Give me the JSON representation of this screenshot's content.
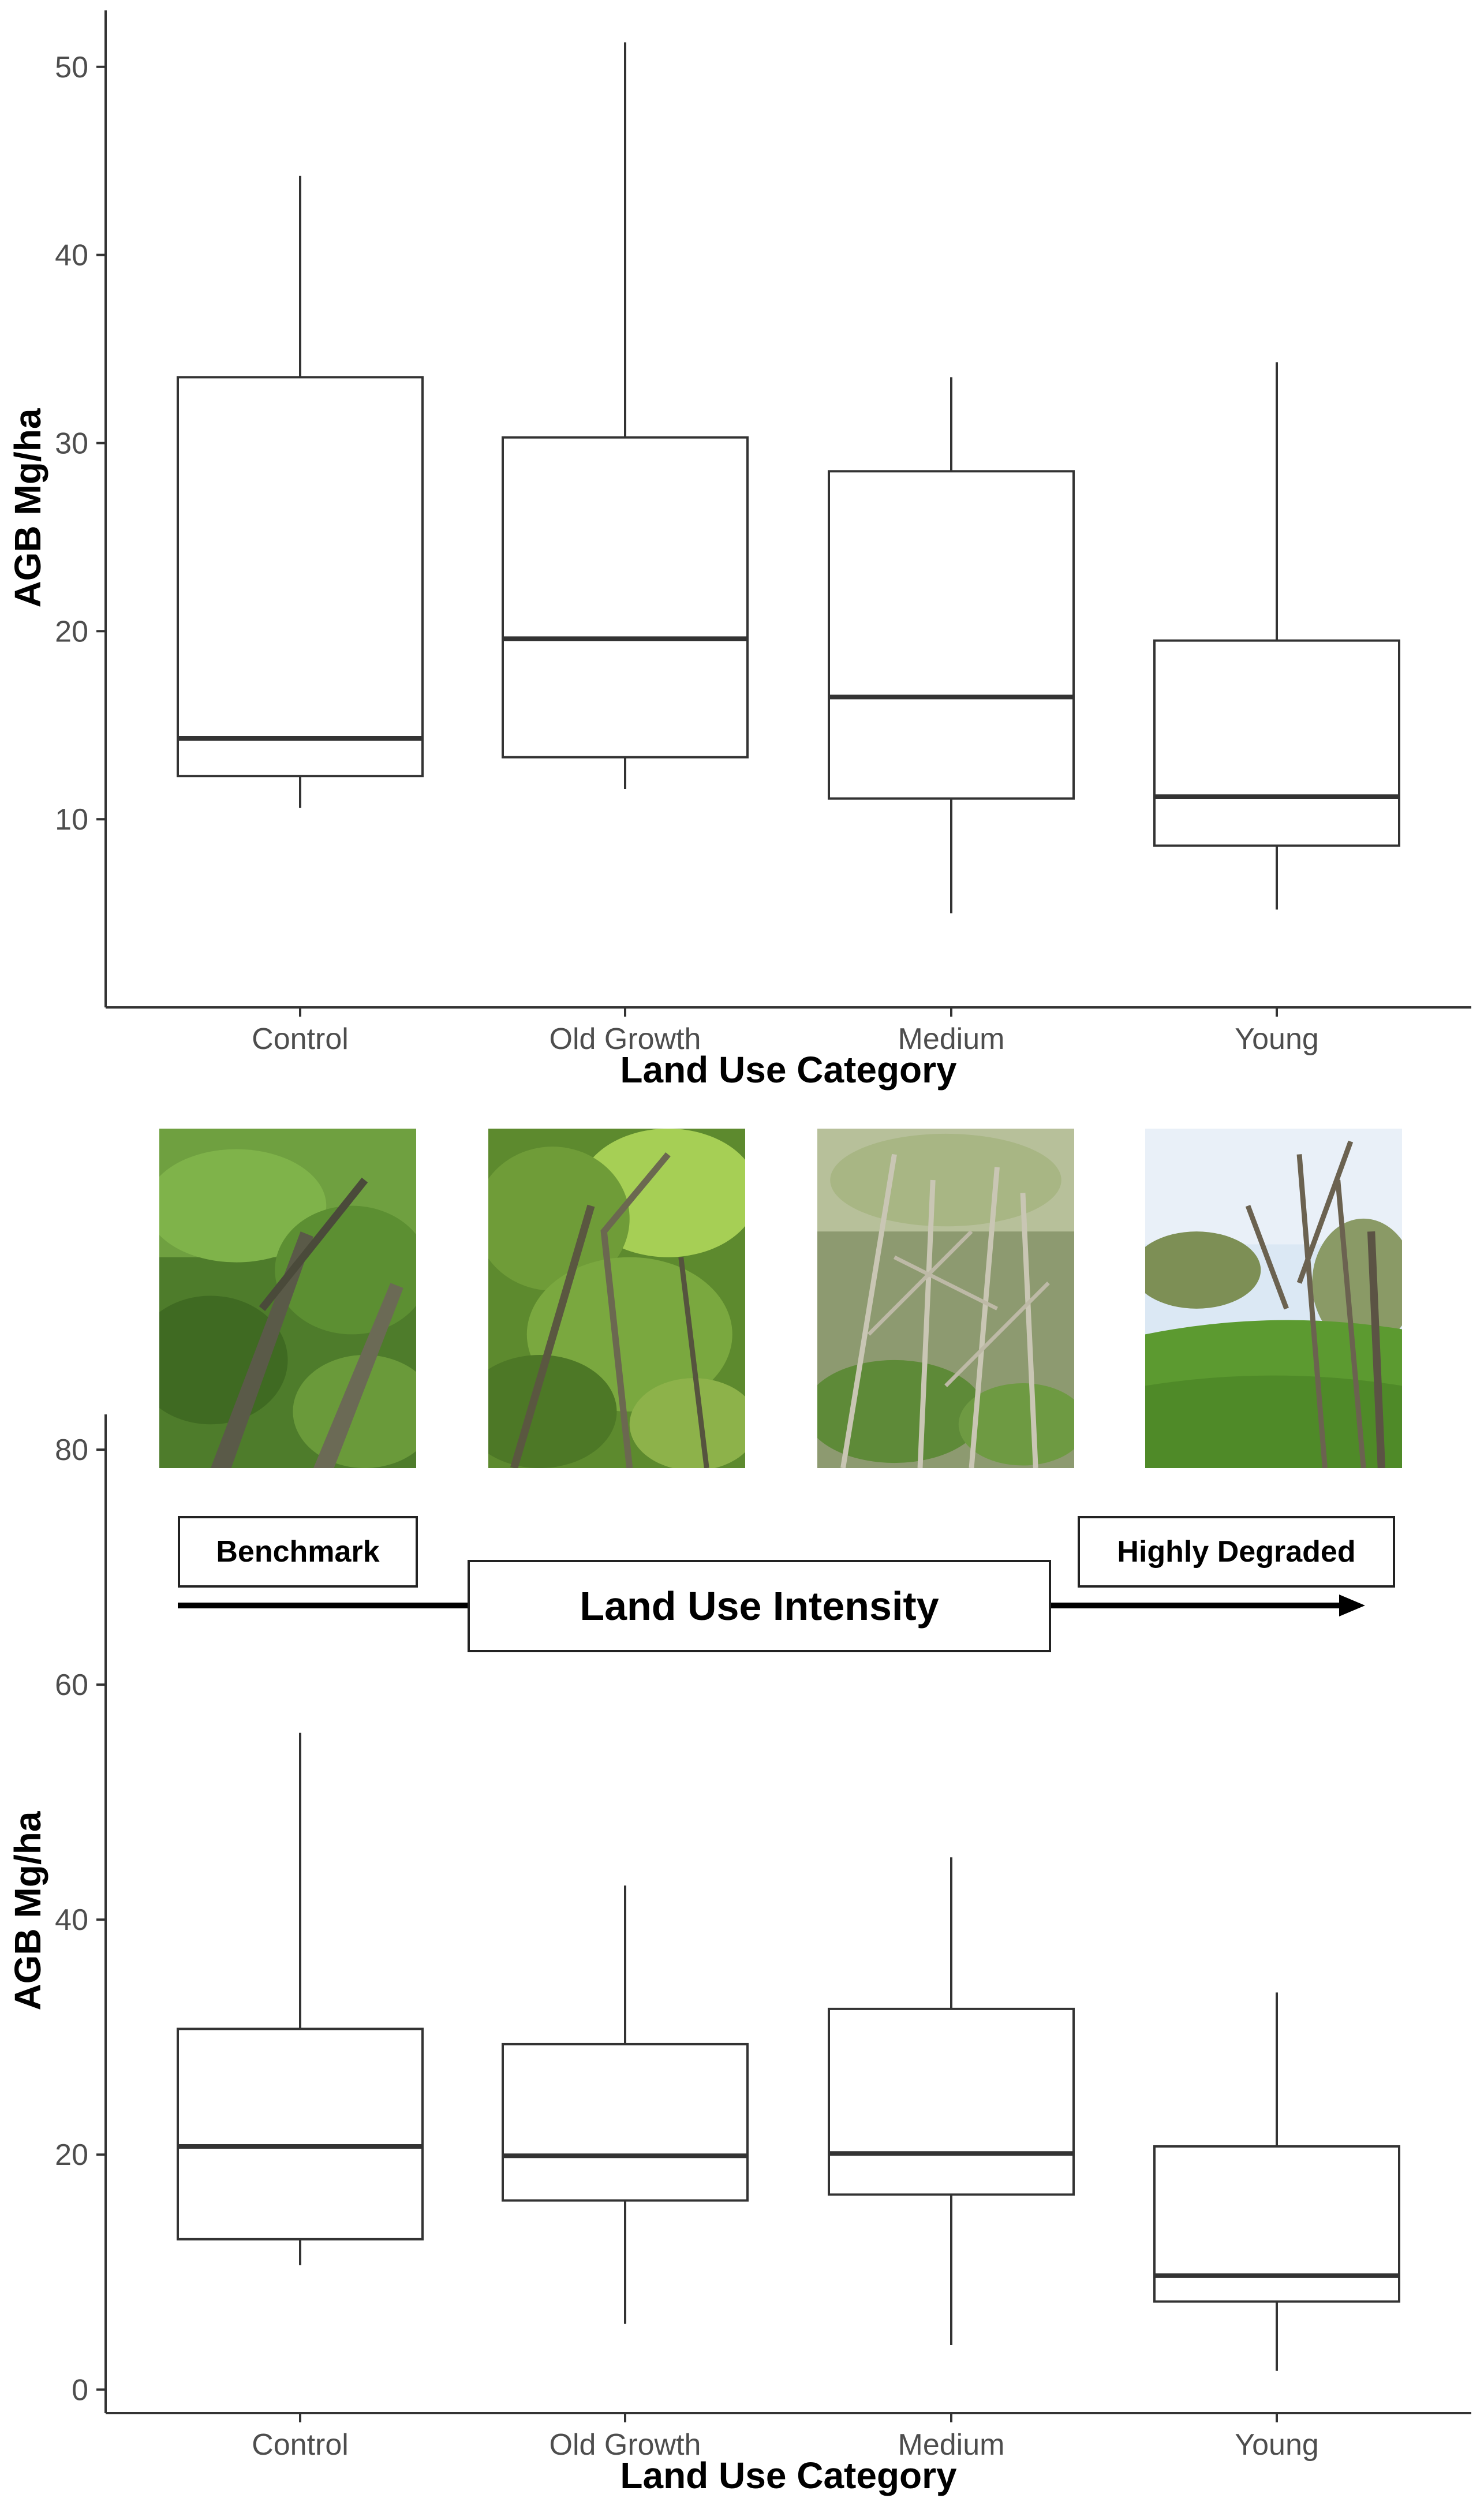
{
  "chart_data": [
    {
      "type": "boxplot",
      "xlabel": "Land Use Category",
      "ylabel": "AGB Mg/ha",
      "categories": [
        "Control",
        "Old Growth",
        "Medium",
        "Young"
      ],
      "ylim": [
        0,
        53
      ],
      "yticks": [
        10,
        20,
        30,
        40,
        50
      ],
      "boxes": [
        {
          "category": "Control",
          "min": 10.6,
          "q1": 12.3,
          "median": 14.3,
          "q3": 33.5,
          "max": 44.2
        },
        {
          "category": "Old Growth",
          "min": 11.6,
          "q1": 13.3,
          "median": 19.6,
          "q3": 30.3,
          "max": 51.3
        },
        {
          "category": "Medium",
          "min": 5.0,
          "q1": 11.1,
          "median": 16.5,
          "q3": 28.5,
          "max": 33.5
        },
        {
          "category": "Young",
          "min": 5.2,
          "q1": 8.6,
          "median": 11.2,
          "q3": 19.5,
          "max": 34.3
        }
      ]
    },
    {
      "type": "boxplot",
      "xlabel": "Land Use Category",
      "ylabel": "AGB Mg/ha",
      "categories": [
        "Control",
        "Old Growth",
        "Medium",
        "Young"
      ],
      "ylim": [
        -2,
        83
      ],
      "yticks": [
        0,
        20,
        40,
        60,
        80
      ],
      "boxes": [
        {
          "category": "Control",
          "min": 10.6,
          "q1": 12.8,
          "median": 20.7,
          "q3": 30.7,
          "max": 55.9
        },
        {
          "category": "Old Growth",
          "min": 5.6,
          "q1": 16.1,
          "median": 19.9,
          "q3": 29.4,
          "max": 42.9
        },
        {
          "category": "Medium",
          "min": 3.8,
          "q1": 16.6,
          "median": 20.1,
          "q3": 32.4,
          "max": 45.3
        },
        {
          "category": "Young",
          "min": 1.6,
          "q1": 7.5,
          "median": 9.7,
          "q3": 20.7,
          "max": 33.8
        }
      ]
    }
  ],
  "annotation": {
    "benchmark": "Benchmark",
    "highly_degraded": "Highly Degraded",
    "intensity": "Land Use Intensity"
  },
  "photos": [
    "forest-photo-control",
    "forest-photo-old-growth",
    "forest-photo-medium",
    "forest-photo-young"
  ]
}
